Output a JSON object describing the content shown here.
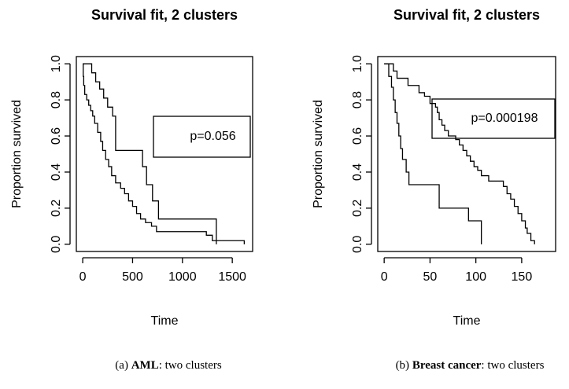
{
  "chart_data": [
    {
      "type": "line",
      "drawstyle": "steps-post",
      "title": "Survival fit, 2 clusters",
      "x_label": "Time",
      "y_label": "Proportion survived",
      "annotation": "p=0.056",
      "xlim": [
        -64,
        1704
      ],
      "ylim": [
        -0.04,
        1.04
      ],
      "xticks": [
        0,
        500,
        1000,
        1500
      ],
      "yticks": [
        {
          "value": 0,
          "label": "0.0"
        },
        0.2,
        0.4,
        0.6,
        0.8,
        {
          "value": 1,
          "label": "1.0"
        }
      ],
      "series": [
        {
          "color": "#000000",
          "x": [
            0,
            90,
            130,
            170,
            210,
            250,
            300,
            330,
            600,
            640,
            700,
            760,
            1340
          ],
          "values": [
            1,
            0.95,
            0.9,
            0.86,
            0.81,
            0.76,
            0.71,
            0.52,
            0.43,
            0.33,
            0.24,
            0.14,
            0
          ]
        },
        {
          "color": "#000000",
          "x": [
            0,
            5,
            10,
            20,
            40,
            60,
            80,
            100,
            120,
            150,
            180,
            200,
            230,
            260,
            290,
            330,
            380,
            420,
            460,
            500,
            540,
            580,
            630,
            690,
            740,
            1240,
            1300,
            1620
          ],
          "values": [
            1,
            0.93,
            0.88,
            0.83,
            0.8,
            0.77,
            0.74,
            0.71,
            0.67,
            0.62,
            0.57,
            0.52,
            0.47,
            0.43,
            0.38,
            0.34,
            0.31,
            0.28,
            0.24,
            0.21,
            0.17,
            0.14,
            0.12,
            0.1,
            0.07,
            0.05,
            0.02,
            0
          ]
        }
      ]
    },
    {
      "type": "line",
      "drawstyle": "steps-post",
      "title": "Survival fit, 2 clusters",
      "x_label": "Time",
      "y_label": "Proportion survived",
      "annotation": "p=0.000198",
      "xlim": [
        -7,
        187
      ],
      "ylim": [
        -0.04,
        1.04
      ],
      "xticks": [
        0,
        50,
        100,
        150
      ],
      "yticks": [
        {
          "value": 0,
          "label": "0.0"
        },
        0.2,
        0.4,
        0.6,
        0.8,
        {
          "value": 1,
          "label": "1.0"
        }
      ],
      "series": [
        {
          "color": "#000000",
          "x": [
            0,
            5,
            8,
            10,
            12,
            14,
            16,
            18,
            20,
            24,
            27,
            60,
            92,
            106
          ],
          "values": [
            1,
            0.93,
            0.87,
            0.8,
            0.73,
            0.67,
            0.6,
            0.53,
            0.47,
            0.4,
            0.33,
            0.2,
            0.13,
            0
          ]
        },
        {
          "color": "#000000",
          "x": [
            0,
            10,
            14,
            26,
            38,
            44,
            50,
            56,
            58,
            60,
            63,
            66,
            70,
            78,
            82,
            86,
            90,
            94,
            98,
            102,
            106,
            114,
            130,
            134,
            138,
            142,
            146,
            150,
            154,
            156,
            160,
            164
          ],
          "values": [
            1,
            0.96,
            0.92,
            0.88,
            0.84,
            0.82,
            0.78,
            0.76,
            0.73,
            0.69,
            0.66,
            0.63,
            0.6,
            0.58,
            0.55,
            0.52,
            0.49,
            0.46,
            0.43,
            0.41,
            0.38,
            0.35,
            0.32,
            0.28,
            0.25,
            0.21,
            0.17,
            0.13,
            0.09,
            0.06,
            0.02,
            0
          ]
        }
      ]
    }
  ],
  "captions": [
    {
      "label": "(a)",
      "bold": "AML",
      "text": ": two clusters"
    },
    {
      "label": "(b)",
      "bold": "Breast cancer",
      "text": ": two clusters"
    }
  ]
}
